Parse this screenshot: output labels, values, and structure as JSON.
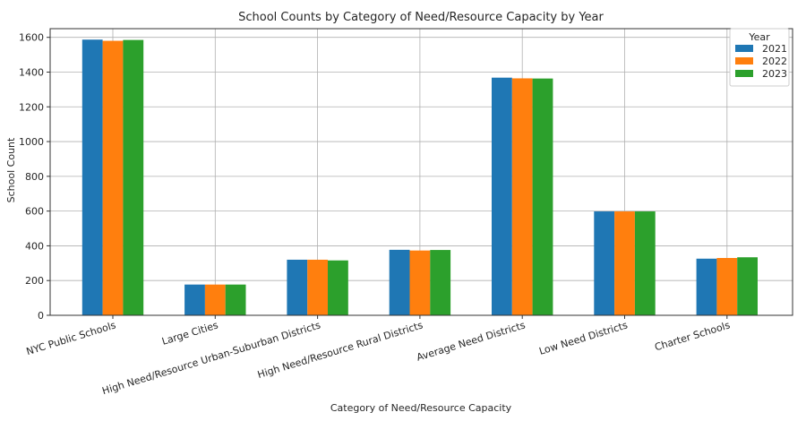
{
  "chart_data": {
    "type": "bar",
    "title": "School Counts by Category of Need/Resource Capacity by Year",
    "xlabel": "Category of Need/Resource Capacity",
    "ylabel": "School Count",
    "ylim": [
      0,
      1650
    ],
    "yticks": [
      0,
      200,
      400,
      600,
      800,
      1000,
      1200,
      1400,
      1600
    ],
    "grid": true,
    "legend": {
      "title": "Year",
      "placement": "top-right"
    },
    "categories": [
      "NYC Public Schools",
      "Large Cities",
      "High Need/Resource Urban-Suburban Districts",
      "High Need/Resource Rural Districts",
      "Average Need Districts",
      "Low Need Districts",
      "Charter Schools"
    ],
    "series": [
      {
        "name": "2021",
        "color": "#1f77b4",
        "values": [
          1587,
          177,
          320,
          377,
          1368,
          598,
          326
        ]
      },
      {
        "name": "2022",
        "color": "#ff7f0e",
        "values": [
          1580,
          177,
          320,
          373,
          1364,
          598,
          330
        ]
      },
      {
        "name": "2023",
        "color": "#2ca02c",
        "values": [
          1585,
          177,
          316,
          376,
          1363,
          598,
          334
        ]
      }
    ]
  }
}
